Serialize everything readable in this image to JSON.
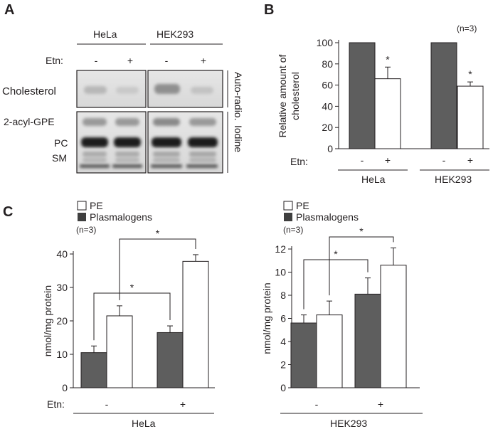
{
  "panel_labels": {
    "a": "A",
    "b": "B",
    "c": "C"
  },
  "blot": {
    "cell_lines": [
      "HeLa",
      "HEK293"
    ],
    "etn_label": "Etn:",
    "etn_states": [
      "-",
      "+",
      "-",
      "+"
    ],
    "cholesterol_label": "Cholesterol",
    "autoradio_label": "Auto-radio.",
    "iodine_label": "Iodine",
    "band_labels": [
      "2-acyl-GPE",
      "PC",
      "SM"
    ]
  },
  "panel_b": {
    "n_note": "(n=3)",
    "etn_label": "Etn:",
    "group_labels": [
      "HeLa",
      "HEK293"
    ],
    "sig": "*"
  },
  "panel_c_left": {
    "legend_pe": "PE",
    "legend_plasmalogens": "Plasmalogens",
    "n_note": "(n=3)",
    "etn_label": "Etn:",
    "group_label": "HeLa",
    "sig": "*"
  },
  "panel_c_right": {
    "legend_pe": "PE",
    "legend_plasmalogens": "Plasmalogens",
    "n_note": "(n=3)",
    "group_label": "HEK293",
    "sig": "*"
  },
  "colors": {
    "dark_bar": "#5e5e5e",
    "open_bar": "#ffffff",
    "ink": "#231f20"
  },
  "chart_data": [
    {
      "type": "bar",
      "ylabel": "Relative amount of cholesterol",
      "ylim": [
        0,
        100
      ],
      "yticks": [
        0,
        20,
        40,
        60,
        80,
        100
      ],
      "categories": [
        "-",
        "+",
        "-",
        "+"
      ],
      "groups": [
        "HeLa",
        "HEK293"
      ],
      "values": [
        100,
        66,
        100,
        59
      ],
      "errors": [
        0,
        11,
        0,
        4
      ],
      "significant": [
        false,
        true,
        false,
        true
      ],
      "bar_colors": [
        "#5e5e5e",
        "#ffffff",
        "#5e5e5e",
        "#ffffff"
      ]
    },
    {
      "type": "bar",
      "ylabel": "nmol/mg protein",
      "ylim": [
        0,
        40
      ],
      "yticks": [
        0,
        10,
        20,
        30,
        40
      ],
      "categories": [
        "-",
        "+"
      ],
      "series": [
        {
          "name": "Plasmalogens",
          "values": [
            10.5,
            16.5
          ],
          "errors": [
            2,
            2
          ]
        },
        {
          "name": "PE",
          "values": [
            21.5,
            37.8
          ],
          "errors": [
            3,
            2
          ]
        }
      ]
    },
    {
      "type": "bar",
      "ylabel": "nmol/mg protein",
      "ylim": [
        0,
        12
      ],
      "yticks": [
        0,
        2,
        4,
        6,
        8,
        10,
        12
      ],
      "categories": [
        "-",
        "+"
      ],
      "series": [
        {
          "name": "Plasmalogens",
          "values": [
            5.6,
            8.1
          ],
          "errors": [
            0.7,
            1.4
          ]
        },
        {
          "name": "PE",
          "values": [
            6.3,
            10.6
          ],
          "errors": [
            1.2,
            1.5
          ]
        }
      ]
    }
  ]
}
